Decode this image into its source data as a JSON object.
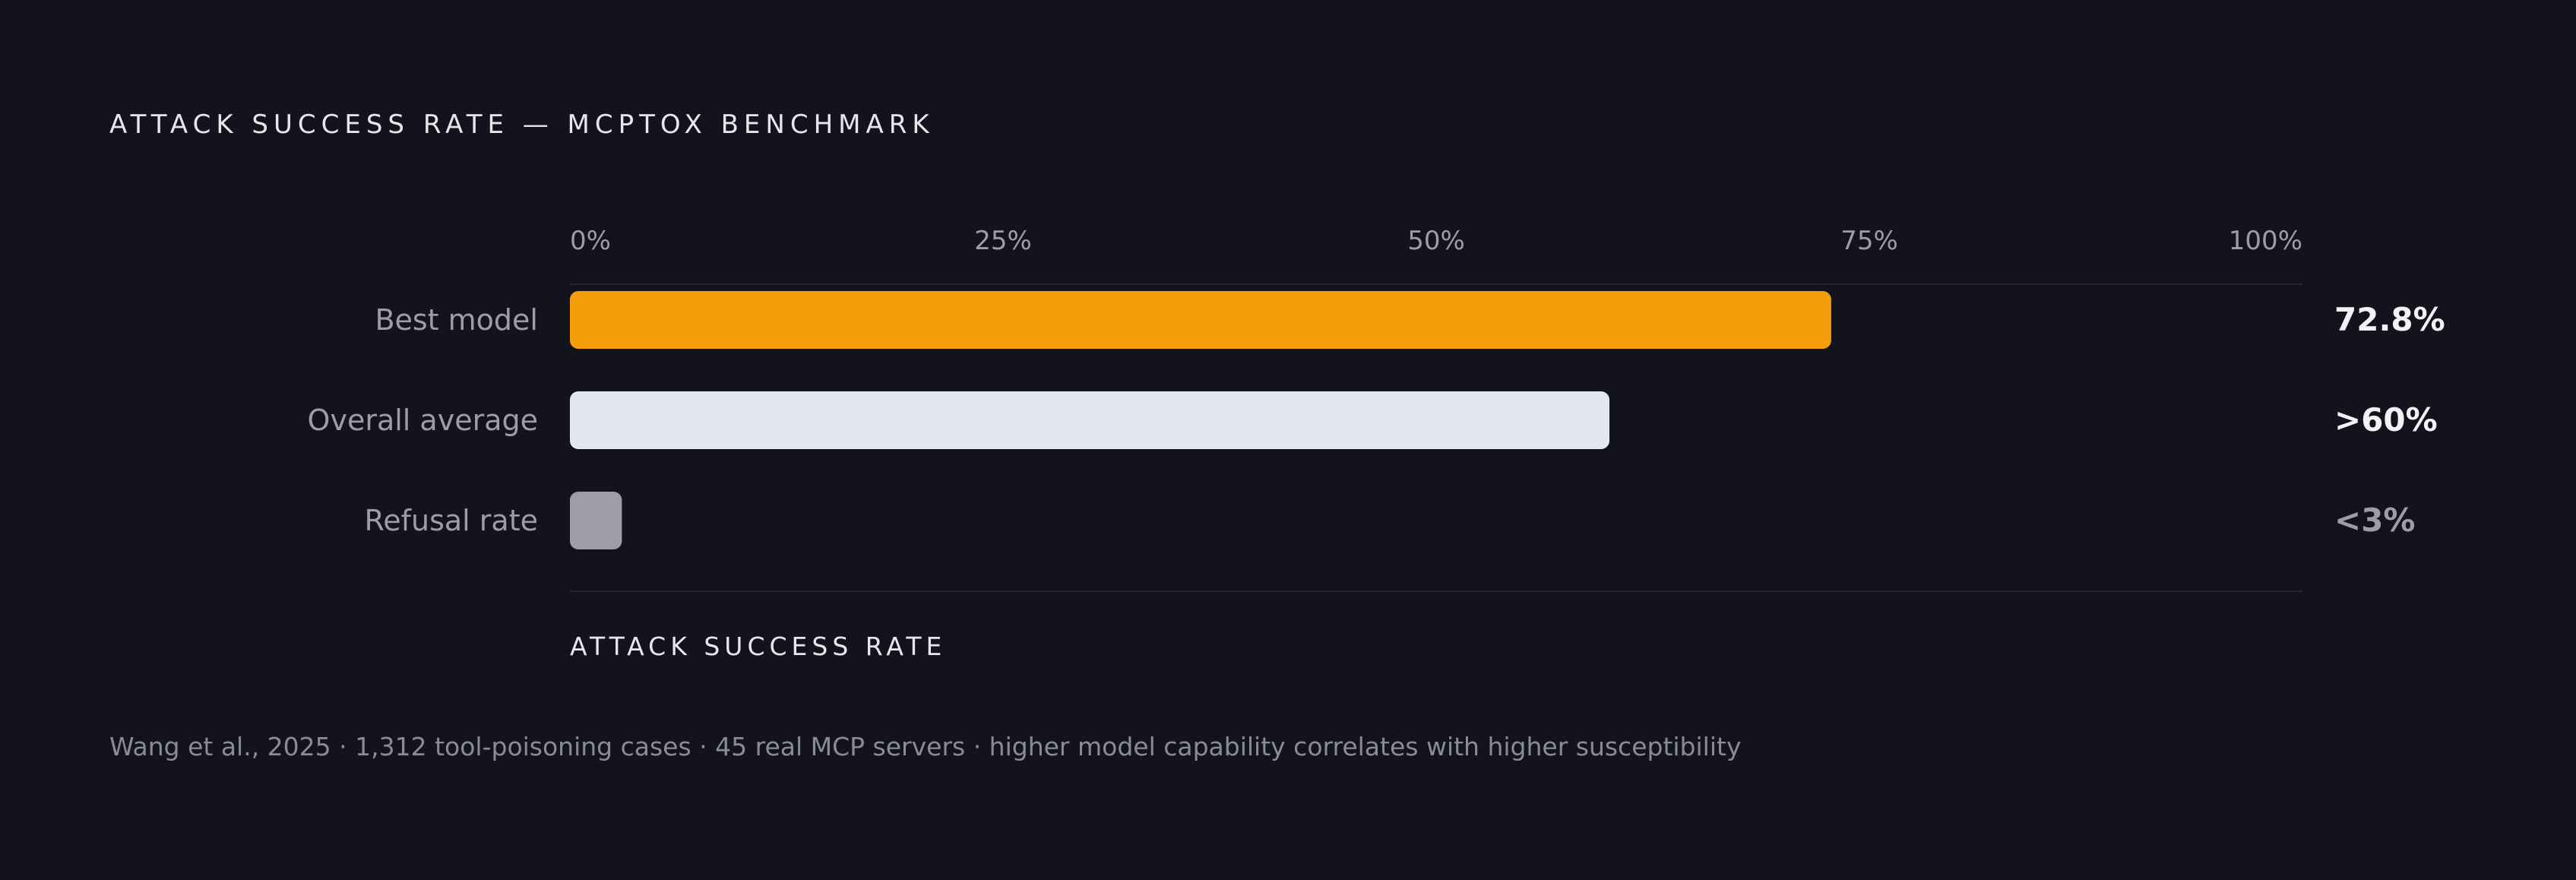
{
  "title": "ATTACK SUCCESS RATE — MCPTOX BENCHMARK",
  "caption": "Wang et al., 2025 · 1,312 tool-poisoning cases · 45 real MCP servers · higher model capability correlates with higher susceptibility",
  "colors": {
    "background": "#13131d",
    "best_model": "#f49e0c",
    "overall_average": "#e3e8f0",
    "refusal_rate": "#9d9da8",
    "label_text": "#9d9da8",
    "value_text_strong": "#f2f2f5",
    "value_text_muted": "#9d9da8",
    "grid": "#262632"
  },
  "chart_data": {
    "type": "bar",
    "orientation": "horizontal",
    "title": "ATTACK SUCCESS RATE — MCPTOX BENCHMARK",
    "xlabel": "ATTACK SUCCESS RATE",
    "ylabel": "",
    "xlim": [
      0,
      100
    ],
    "x_ticks": [
      0,
      25,
      50,
      75,
      100
    ],
    "x_tick_labels": [
      "0%",
      "25%",
      "50%",
      "75%",
      "100%"
    ],
    "categories": [
      "Best model",
      "Overall average",
      "Refusal rate"
    ],
    "values": [
      72.8,
      60,
      3
    ],
    "value_labels": [
      "72.8%",
      ">60%",
      "<3%"
    ],
    "bar_colors": [
      "#f49e0c",
      "#e3e8f0",
      "#9d9da8"
    ],
    "value_label_colors": [
      "#f2f2f5",
      "#f2f2f5",
      "#9d9da8"
    ],
    "grid": false
  }
}
